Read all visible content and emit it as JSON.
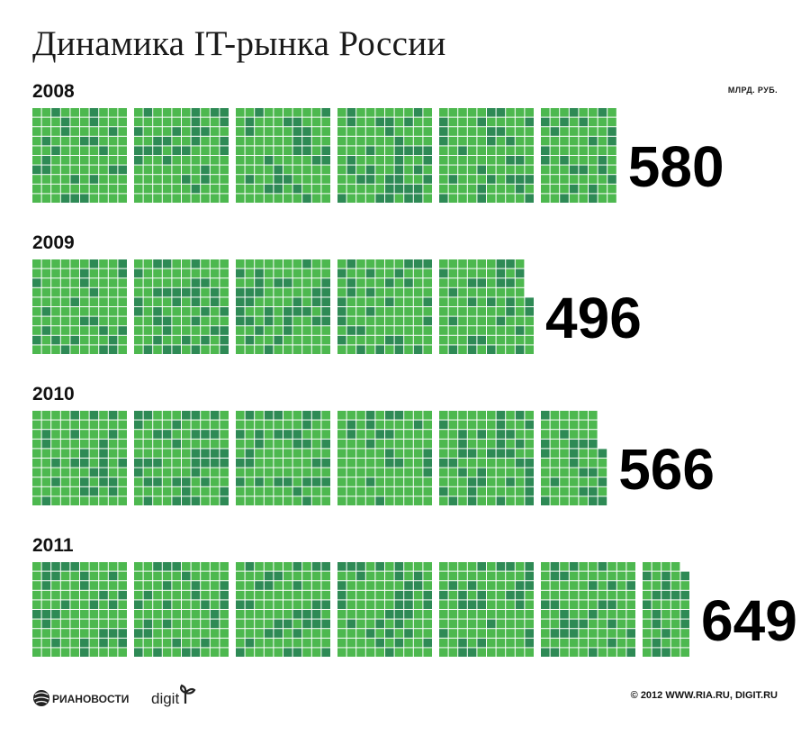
{
  "title": "Динамика IT-рынка России",
  "unit": "МЛРД. РУБ.",
  "chart_data": {
    "type": "bar",
    "orientation": "horizontal",
    "categories": [
      "2008",
      "2009",
      "2010",
      "2011"
    ],
    "values": [
      580,
      496,
      566,
      649
    ],
    "value_labels": [
      "580",
      "496",
      "566",
      "649"
    ],
    "unit": "МЛРД. РУБ.",
    "encoding": "unit squares grouped in blocks of 100",
    "colors": {
      "light": "#4db84f",
      "dark": "#2e8a55"
    }
  },
  "footer": {
    "ria_logo_text": "РИАНОВОСТИ",
    "digit_logo_text": "digit",
    "copyright": "© 2012 WWW.RIA.RU, DIGIT.RU"
  }
}
